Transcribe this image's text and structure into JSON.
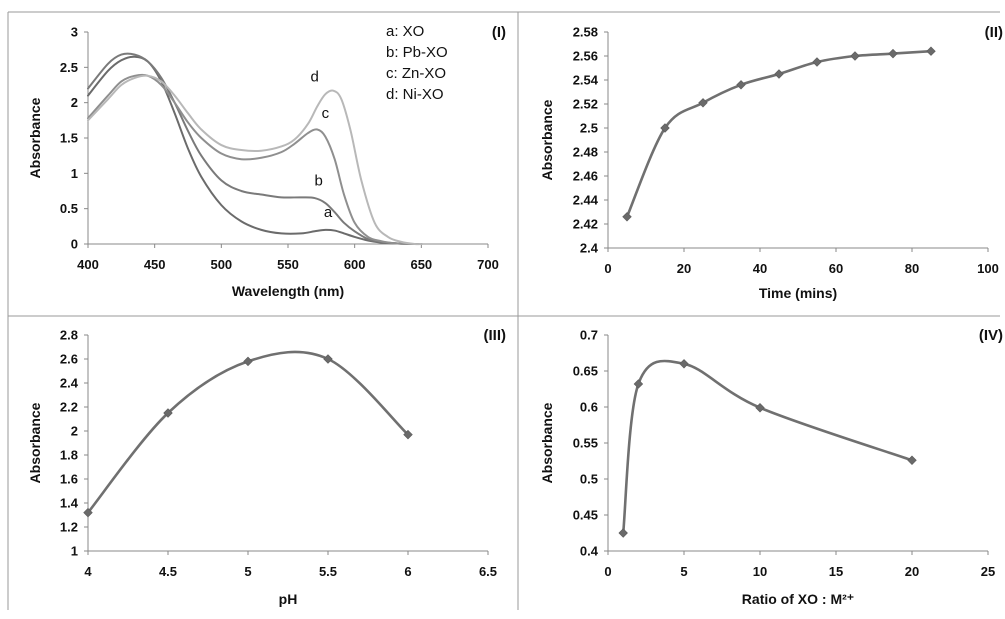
{
  "chart_data": [
    {
      "panel_label": "(I)",
      "type": "line",
      "xlabel": "Wavelength (nm)",
      "ylabel": "Absorbance",
      "xlim": [
        400,
        700
      ],
      "ylim": [
        0,
        3
      ],
      "xticks": [
        "400",
        "450",
        "500",
        "550",
        "600",
        "650",
        "700"
      ],
      "yticks": [
        "0",
        "0.5",
        "1",
        "1.5",
        "2",
        "2.5",
        "3"
      ],
      "markers": false,
      "legend": [
        "a: XO",
        "b: Pb-XO",
        "c: Zn-XO",
        "d: Ni-XO"
      ],
      "legend_position": "top-right",
      "series": [
        {
          "name": "a",
          "color": "#6b6b6b",
          "x": [
            400,
            415,
            425,
            435,
            445,
            455,
            465,
            475,
            485,
            500,
            515,
            530,
            545,
            560,
            570,
            578,
            585,
            592,
            600,
            610,
            620,
            630,
            640,
            650
          ],
          "y": [
            2.1,
            2.45,
            2.6,
            2.65,
            2.58,
            2.3,
            1.85,
            1.35,
            0.95,
            0.55,
            0.32,
            0.2,
            0.15,
            0.15,
            0.18,
            0.2,
            0.19,
            0.15,
            0.1,
            0.05,
            0.02,
            0.01,
            0.0,
            0.0
          ]
        },
        {
          "name": "b",
          "color": "#7a7a7a",
          "x": [
            400,
            415,
            425,
            435,
            445,
            455,
            465,
            475,
            485,
            500,
            515,
            530,
            545,
            560,
            570,
            578,
            585,
            592,
            600,
            610,
            620,
            630,
            640,
            650
          ],
          "y": [
            2.2,
            2.55,
            2.68,
            2.68,
            2.58,
            2.35,
            2.0,
            1.6,
            1.25,
            0.9,
            0.75,
            0.7,
            0.66,
            0.66,
            0.65,
            0.58,
            0.45,
            0.3,
            0.18,
            0.07,
            0.03,
            0.01,
            0.0,
            0.0
          ]
        },
        {
          "name": "c",
          "color": "#8f8f8f",
          "x": [
            400,
            415,
            425,
            435,
            445,
            455,
            465,
            475,
            485,
            500,
            515,
            530,
            545,
            555,
            565,
            572,
            578,
            585,
            592,
            600,
            610,
            620,
            630,
            640,
            650
          ],
          "y": [
            1.78,
            2.1,
            2.3,
            2.38,
            2.38,
            2.25,
            2.0,
            1.72,
            1.5,
            1.28,
            1.2,
            1.22,
            1.3,
            1.42,
            1.57,
            1.62,
            1.52,
            1.2,
            0.7,
            0.3,
            0.1,
            0.04,
            0.01,
            0.0,
            0.0
          ]
        },
        {
          "name": "d",
          "color": "#b8b8b8",
          "x": [
            400,
            415,
            425,
            435,
            445,
            455,
            465,
            475,
            485,
            500,
            515,
            530,
            545,
            555,
            565,
            572,
            578,
            584,
            590,
            597,
            605,
            615,
            625,
            635,
            645,
            650
          ],
          "y": [
            1.75,
            2.05,
            2.25,
            2.35,
            2.38,
            2.3,
            2.1,
            1.85,
            1.62,
            1.4,
            1.33,
            1.32,
            1.38,
            1.48,
            1.7,
            1.95,
            2.12,
            2.17,
            2.05,
            1.6,
            0.9,
            0.3,
            0.1,
            0.03,
            0.0,
            0.0
          ]
        }
      ],
      "curve_labels": [
        {
          "text": "a",
          "x": 580,
          "y": 0.38
        },
        {
          "text": "b",
          "x": 573,
          "y": 0.83
        },
        {
          "text": "c",
          "x": 578,
          "y": 1.78
        },
        {
          "text": "d",
          "x": 570,
          "y": 2.3
        }
      ]
    },
    {
      "panel_label": "(II)",
      "type": "line",
      "xlabel": "Time (mins)",
      "ylabel": "Absorbance",
      "xlim": [
        0,
        100
      ],
      "ylim": [
        2.4,
        2.58
      ],
      "xticks": [
        "0",
        "20",
        "40",
        "60",
        "80",
        "100"
      ],
      "yticks": [
        "2.4",
        "2.42",
        "2.44",
        "2.46",
        "2.48",
        "2.5",
        "2.52",
        "2.54",
        "2.56",
        "2.58"
      ],
      "markers": true,
      "series": [
        {
          "color": "#707070",
          "x": [
            5,
            15,
            25,
            35,
            45,
            55,
            65,
            75,
            85
          ],
          "y": [
            2.426,
            2.5,
            2.521,
            2.536,
            2.545,
            2.555,
            2.56,
            2.562,
            2.564
          ]
        }
      ]
    },
    {
      "panel_label": "(III)",
      "type": "line",
      "xlabel": "pH",
      "ylabel": "Absorbance",
      "xlim": [
        4,
        6.5
      ],
      "ylim": [
        1,
        2.8
      ],
      "xticks": [
        "4",
        "4.5",
        "5",
        "5.5",
        "6",
        "6.5"
      ],
      "yticks": [
        "1",
        "1.2",
        "1.4",
        "1.6",
        "1.8",
        "2",
        "2.2",
        "2.4",
        "2.6",
        "2.8"
      ],
      "markers": true,
      "series": [
        {
          "color": "#707070",
          "x": [
            4,
            4.5,
            5,
            5.5,
            6
          ],
          "y": [
            1.32,
            2.15,
            2.58,
            2.6,
            1.97
          ]
        }
      ]
    },
    {
      "panel_label": "(IV)",
      "type": "line",
      "xlabel": "Ratio of XO : M²⁺",
      "ylabel": "Absorbance",
      "xlim": [
        0,
        25
      ],
      "ylim": [
        0.4,
        0.7
      ],
      "xticks": [
        "0",
        "5",
        "10",
        "15",
        "20",
        "25"
      ],
      "yticks": [
        "0.4",
        "0.45",
        "0.5",
        "0.55",
        "0.6",
        "0.65",
        "0.7"
      ],
      "markers": true,
      "series": [
        {
          "color": "#707070",
          "x": [
            1,
            2,
            5,
            10,
            20
          ],
          "y": [
            0.425,
            0.632,
            0.66,
            0.599,
            0.526
          ]
        }
      ]
    }
  ]
}
